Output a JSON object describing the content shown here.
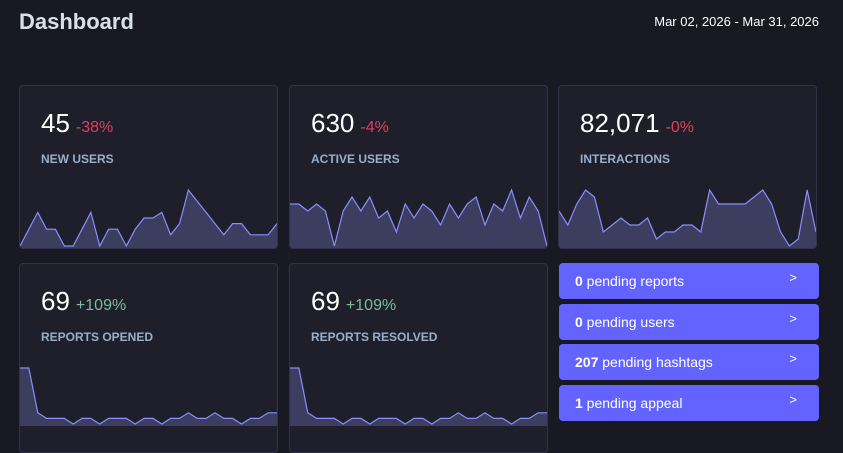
{
  "header": {
    "title": "Dashboard",
    "date_range": "Mar 02, 2026 - Mar 31, 2026"
  },
  "metrics": [
    {
      "value": "45",
      "change": "-38%",
      "trend": "negative",
      "label": "NEW USERS",
      "spark": [
        0,
        3,
        6,
        3,
        3,
        0,
        0,
        3,
        6,
        0,
        3,
        3,
        0,
        3,
        5,
        5,
        6,
        2,
        4,
        10,
        8,
        6,
        4,
        2,
        4,
        4,
        2,
        2,
        2,
        4
      ]
    },
    {
      "value": "630",
      "change": "-4%",
      "trend": "negative",
      "label": "ACTIVE USERS",
      "spark": [
        6,
        6,
        5,
        6,
        5,
        0,
        5,
        7,
        5,
        7,
        4,
        5,
        2,
        6,
        4,
        6,
        5,
        3,
        6,
        4,
        6,
        7,
        3,
        6,
        5,
        8,
        4,
        7,
        5,
        0
      ]
    },
    {
      "value": "82,071",
      "change": "-0%",
      "trend": "negative",
      "label": "INTERACTIONS",
      "spark": [
        5,
        3,
        6,
        8,
        7,
        2,
        3,
        4,
        3,
        3,
        4,
        1,
        2,
        2,
        3,
        3,
        2,
        8,
        6,
        6,
        6,
        6,
        7,
        8,
        6,
        2,
        0,
        1,
        8,
        2
      ]
    },
    {
      "value": "69",
      "change": "+109%",
      "trend": "positive",
      "label": "REPORTS OPENED",
      "spark": [
        10,
        10,
        2,
        1,
        1,
        1,
        0,
        1,
        1,
        0,
        1,
        1,
        1,
        0,
        1,
        1,
        0,
        1,
        1,
        2,
        1,
        1,
        2,
        1,
        1,
        0,
        1,
        1,
        2,
        2
      ]
    },
    {
      "value": "69",
      "change": "+109%",
      "trend": "positive",
      "label": "REPORTS RESOLVED",
      "spark": [
        10,
        10,
        2,
        1,
        1,
        1,
        0,
        1,
        1,
        0,
        1,
        1,
        1,
        0,
        1,
        1,
        0,
        1,
        1,
        2,
        1,
        1,
        2,
        1,
        1,
        0,
        1,
        1,
        2,
        2
      ]
    }
  ],
  "pending": [
    {
      "count": "0",
      "text": " pending reports"
    },
    {
      "count": "0",
      "text": " pending users"
    },
    {
      "count": "207",
      "text": " pending hashtags"
    },
    {
      "count": "1",
      "text": " pending appeal"
    }
  ],
  "colors": {
    "accent": "#6364ff",
    "negative": "#df405a",
    "positive": "#79bd9a",
    "spark_line": "#8c8dff",
    "spark_fill": "#3d3d60"
  }
}
